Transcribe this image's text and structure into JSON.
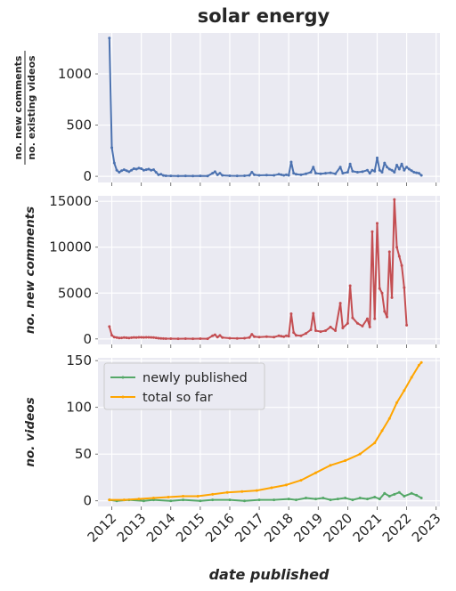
{
  "chart_data": [
    {
      "type": "line",
      "title": "solar energy",
      "ylabel_numerator": "no. new comments",
      "ylabel_denominator": "no. existing videos",
      "xlabel": "",
      "ylim": [
        -60,
        1400
      ],
      "yticks": [
        0,
        500,
        1000
      ],
      "grid": true,
      "series": [
        {
          "color": "#4c72b0",
          "points": [
            [
              "2011-12-01",
              1350
            ],
            [
              "2012-01-01",
              280
            ],
            [
              "2012-02-01",
              130
            ],
            [
              "2012-03-01",
              60
            ],
            [
              "2012-04-01",
              40
            ],
            [
              "2012-05-01",
              55
            ],
            [
              "2012-06-01",
              65
            ],
            [
              "2012-07-01",
              55
            ],
            [
              "2012-08-01",
              45
            ],
            [
              "2012-09-01",
              60
            ],
            [
              "2012-10-01",
              75
            ],
            [
              "2012-11-01",
              70
            ],
            [
              "2012-12-01",
              80
            ],
            [
              "2013-01-01",
              75
            ],
            [
              "2013-02-01",
              60
            ],
            [
              "2013-03-01",
              65
            ],
            [
              "2013-04-01",
              70
            ],
            [
              "2013-05-01",
              60
            ],
            [
              "2013-06-01",
              65
            ],
            [
              "2013-07-01",
              40
            ],
            [
              "2013-08-01",
              15
            ],
            [
              "2013-09-01",
              20
            ],
            [
              "2013-10-01",
              8
            ],
            [
              "2013-11-01",
              5
            ],
            [
              "2014-01-01",
              4
            ],
            [
              "2014-04-01",
              3
            ],
            [
              "2014-07-01",
              4
            ],
            [
              "2014-10-01",
              3
            ],
            [
              "2015-01-01",
              4
            ],
            [
              "2015-04-01",
              3
            ],
            [
              "2015-06-01",
              30
            ],
            [
              "2015-07-01",
              45
            ],
            [
              "2015-08-01",
              15
            ],
            [
              "2015-09-01",
              30
            ],
            [
              "2015-10-01",
              10
            ],
            [
              "2016-01-01",
              5
            ],
            [
              "2016-04-01",
              4
            ],
            [
              "2016-07-01",
              5
            ],
            [
              "2016-09-01",
              10
            ],
            [
              "2016-10-01",
              40
            ],
            [
              "2016-11-01",
              15
            ],
            [
              "2017-01-01",
              10
            ],
            [
              "2017-04-01",
              12
            ],
            [
              "2017-07-01",
              10
            ],
            [
              "2017-09-01",
              20
            ],
            [
              "2017-10-01",
              15
            ],
            [
              "2017-11-01",
              10
            ],
            [
              "2017-12-01",
              15
            ],
            [
              "2018-01-01",
              10
            ],
            [
              "2018-02-01",
              140
            ],
            [
              "2018-03-01",
              30
            ],
            [
              "2018-04-01",
              20
            ],
            [
              "2018-06-01",
              15
            ],
            [
              "2018-08-01",
              25
            ],
            [
              "2018-10-01",
              40
            ],
            [
              "2018-11-01",
              90
            ],
            [
              "2018-12-01",
              30
            ],
            [
              "2019-02-01",
              25
            ],
            [
              "2019-04-01",
              30
            ],
            [
              "2019-06-01",
              35
            ],
            [
              "2019-08-01",
              25
            ],
            [
              "2019-10-01",
              90
            ],
            [
              "2019-11-01",
              30
            ],
            [
              "2020-01-01",
              40
            ],
            [
              "2020-02-01",
              120
            ],
            [
              "2020-03-01",
              50
            ],
            [
              "2020-05-01",
              40
            ],
            [
              "2020-07-01",
              45
            ],
            [
              "2020-09-01",
              60
            ],
            [
              "2020-10-01",
              30
            ],
            [
              "2020-11-01",
              60
            ],
            [
              "2020-12-01",
              50
            ],
            [
              "2021-01-01",
              180
            ],
            [
              "2021-02-01",
              60
            ],
            [
              "2021-03-01",
              40
            ],
            [
              "2021-04-01",
              130
            ],
            [
              "2021-05-01",
              90
            ],
            [
              "2021-06-01",
              70
            ],
            [
              "2021-07-01",
              60
            ],
            [
              "2021-08-01",
              40
            ],
            [
              "2021-09-01",
              110
            ],
            [
              "2021-10-01",
              70
            ],
            [
              "2021-11-01",
              120
            ],
            [
              "2021-12-01",
              60
            ],
            [
              "2022-01-01",
              90
            ],
            [
              "2022-02-01",
              70
            ],
            [
              "2022-03-01",
              55
            ],
            [
              "2022-04-01",
              40
            ],
            [
              "2022-05-01",
              35
            ],
            [
              "2022-06-01",
              30
            ],
            [
              "2022-07-01",
              10
            ]
          ]
        }
      ]
    },
    {
      "type": "line",
      "title": "",
      "ylabel": "no. new comments",
      "xlabel": "",
      "ylim": [
        -600,
        15600
      ],
      "yticks": [
        0,
        5000,
        10000,
        15000
      ],
      "grid": true,
      "series": [
        {
          "color": "#c44e52",
          "points": [
            [
              "2011-12-01",
              1350
            ],
            [
              "2012-01-01",
              400
            ],
            [
              "2012-02-01",
              200
            ],
            [
              "2012-03-01",
              150
            ],
            [
              "2012-04-01",
              100
            ],
            [
              "2012-05-01",
              120
            ],
            [
              "2012-06-01",
              150
            ],
            [
              "2012-07-01",
              130
            ],
            [
              "2012-08-01",
              100
            ],
            [
              "2012-09-01",
              140
            ],
            [
              "2012-10-01",
              160
            ],
            [
              "2012-11-01",
              150
            ],
            [
              "2012-12-01",
              170
            ],
            [
              "2013-01-01",
              180
            ],
            [
              "2013-02-01",
              160
            ],
            [
              "2013-03-01",
              170
            ],
            [
              "2013-04-01",
              180
            ],
            [
              "2013-05-01",
              160
            ],
            [
              "2013-06-01",
              150
            ],
            [
              "2013-07-01",
              120
            ],
            [
              "2013-08-01",
              80
            ],
            [
              "2013-09-01",
              60
            ],
            [
              "2013-10-01",
              40
            ],
            [
              "2013-11-01",
              30
            ],
            [
              "2014-01-01",
              25
            ],
            [
              "2014-04-01",
              20
            ],
            [
              "2014-07-01",
              25
            ],
            [
              "2014-10-01",
              20
            ],
            [
              "2015-01-01",
              25
            ],
            [
              "2015-04-01",
              20
            ],
            [
              "2015-06-01",
              350
            ],
            [
              "2015-07-01",
              450
            ],
            [
              "2015-08-01",
              200
            ],
            [
              "2015-09-01",
              380
            ],
            [
              "2015-10-01",
              150
            ],
            [
              "2016-01-01",
              80
            ],
            [
              "2016-04-01",
              60
            ],
            [
              "2016-07-01",
              80
            ],
            [
              "2016-09-01",
              150
            ],
            [
              "2016-10-01",
              500
            ],
            [
              "2016-11-01",
              250
            ],
            [
              "2017-01-01",
              200
            ],
            [
              "2017-04-01",
              250
            ],
            [
              "2017-07-01",
              200
            ],
            [
              "2017-09-01",
              350
            ],
            [
              "2017-10-01",
              300
            ],
            [
              "2017-11-01",
              250
            ],
            [
              "2017-12-01",
              350
            ],
            [
              "2018-01-01",
              300
            ],
            [
              "2018-02-01",
              2750
            ],
            [
              "2018-03-01",
              700
            ],
            [
              "2018-04-01",
              400
            ],
            [
              "2018-06-01",
              350
            ],
            [
              "2018-08-01",
              600
            ],
            [
              "2018-10-01",
              1000
            ],
            [
              "2018-11-01",
              2800
            ],
            [
              "2018-12-01",
              900
            ],
            [
              "2019-02-01",
              800
            ],
            [
              "2019-04-01",
              900
            ],
            [
              "2019-06-01",
              1300
            ],
            [
              "2019-08-01",
              900
            ],
            [
              "2019-10-01",
              3900
            ],
            [
              "2019-11-01",
              1200
            ],
            [
              "2020-01-01",
              1700
            ],
            [
              "2020-02-01",
              5800
            ],
            [
              "2020-03-01",
              2300
            ],
            [
              "2020-05-01",
              1700
            ],
            [
              "2020-07-01",
              1400
            ],
            [
              "2020-09-01",
              2200
            ],
            [
              "2020-10-01",
              1300
            ],
            [
              "2020-11-01",
              11700
            ],
            [
              "2020-12-01",
              2200
            ],
            [
              "2021-01-01",
              12600
            ],
            [
              "2021-02-01",
              5500
            ],
            [
              "2021-03-01",
              5000
            ],
            [
              "2021-04-01",
              3000
            ],
            [
              "2021-05-01",
              2400
            ],
            [
              "2021-06-01",
              9500
            ],
            [
              "2021-07-01",
              4500
            ],
            [
              "2021-08-01",
              15200
            ],
            [
              "2021-09-01",
              10000
            ],
            [
              "2021-10-01",
              9000
            ],
            [
              "2021-11-01",
              8000
            ],
            [
              "2021-12-01",
              5600
            ],
            [
              "2022-01-01",
              1500
            ]
          ]
        }
      ]
    },
    {
      "type": "line",
      "title": "",
      "ylabel": "no. videos",
      "xlabel": "date published",
      "ylim": [
        -6,
        153
      ],
      "yticks": [
        0,
        50,
        100,
        150
      ],
      "xticks": [
        "2012",
        "2013",
        "2014",
        "2015",
        "2016",
        "2017",
        "2018",
        "2019",
        "2020",
        "2021",
        "2022",
        "2023"
      ],
      "legend": "upper-left",
      "grid": true,
      "series": [
        {
          "name": "newly published",
          "color": "#55a868",
          "points": [
            [
              "2011-12-01",
              1
            ],
            [
              "2012-03-01",
              0
            ],
            [
              "2012-08-01",
              1
            ],
            [
              "2013-02-01",
              0
            ],
            [
              "2013-06-01",
              1
            ],
            [
              "2014-01-01",
              0
            ],
            [
              "2014-06-01",
              1
            ],
            [
              "2015-01-01",
              0
            ],
            [
              "2015-06-01",
              1
            ],
            [
              "2016-01-01",
              1
            ],
            [
              "2016-07-01",
              0
            ],
            [
              "2017-01-01",
              1
            ],
            [
              "2017-07-01",
              1
            ],
            [
              "2018-01-01",
              2
            ],
            [
              "2018-04-01",
              1
            ],
            [
              "2018-08-01",
              3
            ],
            [
              "2018-12-01",
              2
            ],
            [
              "2019-03-01",
              3
            ],
            [
              "2019-06-01",
              1
            ],
            [
              "2019-09-01",
              2
            ],
            [
              "2019-12-01",
              3
            ],
            [
              "2020-03-01",
              1
            ],
            [
              "2020-06-01",
              3
            ],
            [
              "2020-09-01",
              2
            ],
            [
              "2020-12-01",
              4
            ],
            [
              "2021-02-01",
              2
            ],
            [
              "2021-04-01",
              8
            ],
            [
              "2021-06-01",
              5
            ],
            [
              "2021-08-01",
              7
            ],
            [
              "2021-10-01",
              9
            ],
            [
              "2021-12-01",
              5
            ],
            [
              "2022-03-01",
              8
            ],
            [
              "2022-05-01",
              6
            ],
            [
              "2022-07-01",
              3
            ]
          ]
        },
        {
          "name": "total so far",
          "color": "#ffa500",
          "points": [
            [
              "2011-12-01",
              1
            ],
            [
              "2012-06-01",
              1
            ],
            [
              "2012-12-01",
              2
            ],
            [
              "2013-06-01",
              3
            ],
            [
              "2013-12-01",
              4
            ],
            [
              "2014-06-01",
              5
            ],
            [
              "2014-12-01",
              5
            ],
            [
              "2015-06-01",
              7
            ],
            [
              "2015-12-01",
              9
            ],
            [
              "2016-06-01",
              10
            ],
            [
              "2016-12-01",
              11
            ],
            [
              "2017-06-01",
              14
            ],
            [
              "2017-12-01",
              17
            ],
            [
              "2018-06-01",
              22
            ],
            [
              "2018-12-01",
              30
            ],
            [
              "2019-06-01",
              38
            ],
            [
              "2019-12-01",
              43
            ],
            [
              "2020-06-01",
              50
            ],
            [
              "2020-12-01",
              62
            ],
            [
              "2021-03-01",
              75
            ],
            [
              "2021-06-01",
              88
            ],
            [
              "2021-09-01",
              105
            ],
            [
              "2021-12-01",
              118
            ],
            [
              "2022-03-01",
              132
            ],
            [
              "2022-06-01",
              145
            ],
            [
              "2022-07-01",
              148
            ]
          ]
        }
      ]
    }
  ]
}
